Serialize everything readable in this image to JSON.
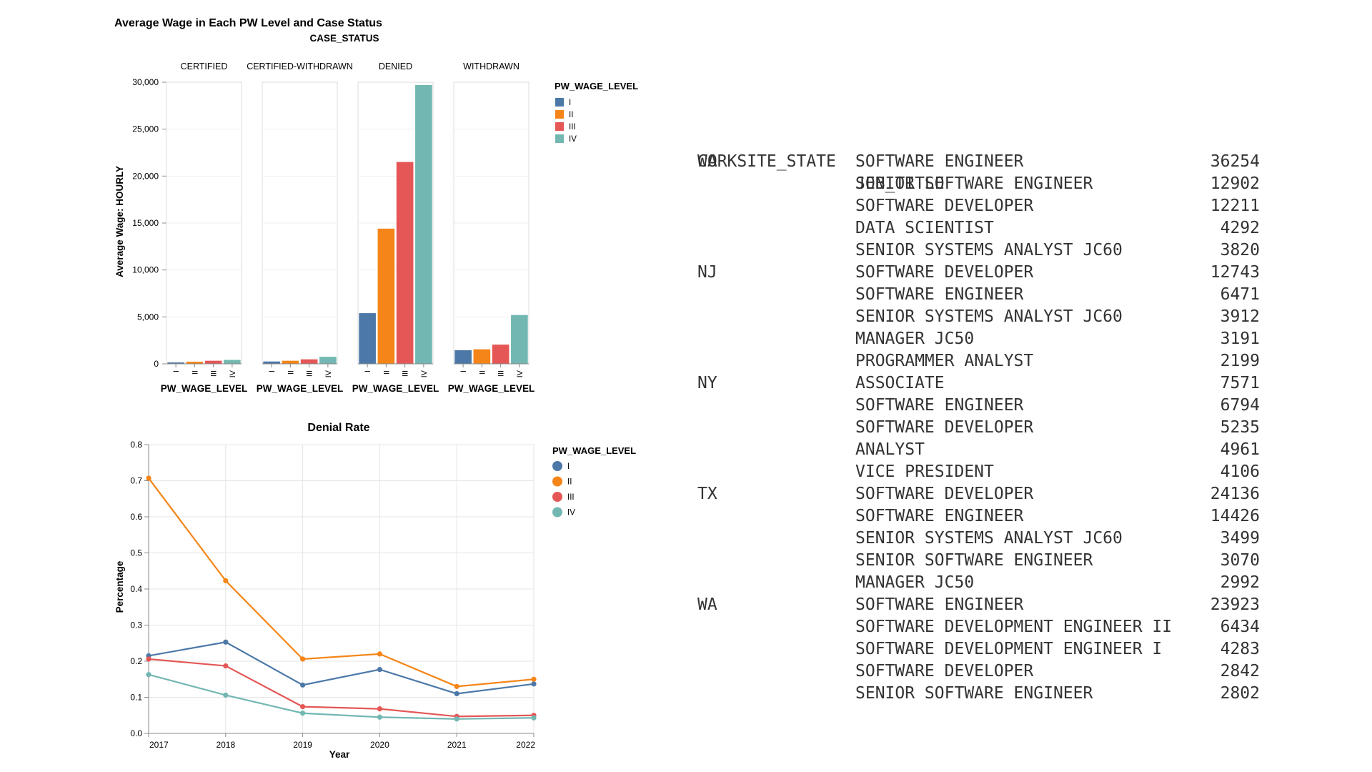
{
  "chart_data": [
    {
      "type": "bar",
      "title": "Average Wage in Each PW Level and Case Status",
      "facet_title": "CASE_STATUS",
      "facets": [
        "CERTIFIED",
        "CERTIFIED-WITHDRAWN",
        "DENIED",
        "WITHDRAWN"
      ],
      "categories": [
        "I",
        "II",
        "III",
        "IV"
      ],
      "xlabel": "PW_WAGE_LEVEL",
      "ylabel": "Average Wage: HOURLY",
      "ylim": [
        0,
        30000
      ],
      "yticks": [
        "0",
        "5,000",
        "10,000",
        "15,000",
        "20,000",
        "25,000",
        "30,000"
      ],
      "legend_title": "PW_WAGE_LEVEL",
      "legend_position": "right",
      "colors": [
        "#4c78a8",
        "#f58518",
        "#e45756",
        "#72b7b2"
      ],
      "values": {
        "CERTIFIED": [
          150,
          230,
          330,
          420
        ],
        "CERTIFIED-WITHDRAWN": [
          250,
          330,
          480,
          750
        ],
        "DENIED": [
          5400,
          14400,
          21500,
          29700
        ],
        "WITHDRAWN": [
          1450,
          1550,
          2050,
          5200
        ]
      }
    },
    {
      "type": "line",
      "title": "Denial Rate",
      "x": [
        "2017",
        "2018",
        "2019",
        "2020",
        "2021",
        "2022"
      ],
      "xlabel": "Year",
      "ylabel": "Percentage",
      "ylim": [
        0,
        0.8
      ],
      "yticks": [
        "0.0",
        "0.1",
        "0.2",
        "0.3",
        "0.4",
        "0.5",
        "0.6",
        "0.7",
        "0.8"
      ],
      "legend_title": "PW_WAGE_LEVEL",
      "legend_position": "right",
      "grid": true,
      "series": [
        {
          "name": "I",
          "color": "#4c78a8",
          "values": [
            0.215,
            0.253,
            0.134,
            0.177,
            0.11,
            0.137
          ]
        },
        {
          "name": "II",
          "color": "#f58518",
          "values": [
            0.707,
            0.423,
            0.206,
            0.22,
            0.13,
            0.15
          ]
        },
        {
          "name": "III",
          "color": "#e45756",
          "values": [
            0.206,
            0.187,
            0.074,
            0.068,
            0.047,
            0.05
          ]
        },
        {
          "name": "IV",
          "color": "#72b7b2",
          "values": [
            0.163,
            0.106,
            0.056,
            0.045,
            0.04,
            0.043
          ]
        }
      ]
    }
  ],
  "table": {
    "columns": [
      "WORKSITE_STATE",
      "JOB_TITLE"
    ],
    "rows": [
      {
        "state": "CA",
        "title": "SOFTWARE ENGINEER",
        "count": "36254"
      },
      {
        "state": "",
        "title": "SENIOR SOFTWARE ENGINEER",
        "count": "12902"
      },
      {
        "state": "",
        "title": "SOFTWARE DEVELOPER",
        "count": "12211"
      },
      {
        "state": "",
        "title": "DATA SCIENTIST",
        "count": "4292"
      },
      {
        "state": "",
        "title": "SENIOR SYSTEMS ANALYST JC60",
        "count": "3820"
      },
      {
        "state": "NJ",
        "title": "SOFTWARE DEVELOPER",
        "count": "12743"
      },
      {
        "state": "",
        "title": "SOFTWARE ENGINEER",
        "count": "6471"
      },
      {
        "state": "",
        "title": "SENIOR SYSTEMS ANALYST JC60",
        "count": "3912"
      },
      {
        "state": "",
        "title": "MANAGER JC50",
        "count": "3191"
      },
      {
        "state": "",
        "title": "PROGRAMMER ANALYST",
        "count": "2199"
      },
      {
        "state": "NY",
        "title": "ASSOCIATE",
        "count": "7571"
      },
      {
        "state": "",
        "title": "SOFTWARE ENGINEER",
        "count": "6794"
      },
      {
        "state": "",
        "title": "SOFTWARE DEVELOPER",
        "count": "5235"
      },
      {
        "state": "",
        "title": "ANALYST",
        "count": "4961"
      },
      {
        "state": "",
        "title": "VICE PRESIDENT",
        "count": "4106"
      },
      {
        "state": "TX",
        "title": "SOFTWARE DEVELOPER",
        "count": "24136"
      },
      {
        "state": "",
        "title": "SOFTWARE ENGINEER",
        "count": "14426"
      },
      {
        "state": "",
        "title": "SENIOR SYSTEMS ANALYST JC60",
        "count": "3499"
      },
      {
        "state": "",
        "title": "SENIOR SOFTWARE ENGINEER",
        "count": "3070"
      },
      {
        "state": "",
        "title": "MANAGER JC50",
        "count": "2992"
      },
      {
        "state": "WA",
        "title": "SOFTWARE ENGINEER",
        "count": "23923"
      },
      {
        "state": "",
        "title": "SOFTWARE DEVELOPMENT ENGINEER II",
        "count": "6434"
      },
      {
        "state": "",
        "title": "SOFTWARE DEVELOPMENT ENGINEER I",
        "count": "4283"
      },
      {
        "state": "",
        "title": "SOFTWARE DEVELOPER",
        "count": "2842"
      },
      {
        "state": "",
        "title": "SENIOR SOFTWARE ENGINEER",
        "count": "2802"
      }
    ]
  }
}
